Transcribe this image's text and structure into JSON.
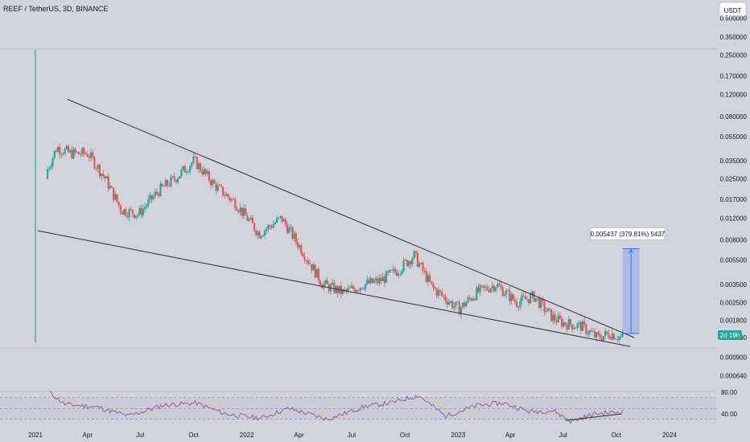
{
  "header": {
    "title": "REEF / TetherUS, 3D, BINANCE"
  },
  "unit_button": {
    "label": "USDT"
  },
  "countdown": {
    "label": "2d 19h",
    "price": "0.001300"
  },
  "measure": {
    "label": "0.005437 (379.81%) 5437"
  },
  "colors": {
    "background": "#d1d4dc",
    "up": "#26a69a",
    "down": "#ef5350",
    "trendline": "#2a2e39",
    "rsi_line": "#7e57c2",
    "rsi_ma": "#f2c94c",
    "measure_fill": "#2962ff",
    "countdown_bg": "#26a69a"
  },
  "chart_data": [
    {
      "type": "candlestick",
      "symbol": "REEF / TetherUS",
      "interval": "3D",
      "exchange": "BINANCE",
      "scale": "log",
      "grid": false,
      "y_ticks": [
        "0.500000",
        "0.350000",
        "0.250000",
        "0.170000",
        "0.120000",
        "0.080000",
        "0.055000",
        "0.035000",
        "0.025000",
        "0.017000",
        "0.012000",
        "0.008000",
        "0.005500",
        "0.003500",
        "0.002500",
        "0.001800",
        "0.001300",
        "0.000900",
        "0.000640"
      ],
      "x_ticks": [
        "2021",
        "Apr",
        "Jul",
        "Oct",
        "2022",
        "Apr",
        "Jul",
        "Oct",
        "2023",
        "Apr",
        "Jul",
        "Oct",
        "2024"
      ],
      "approx_path": [
        {
          "x": "2020-12-20",
          "y": 0.0011
        },
        {
          "x": "2021-01-05",
          "y": 0.009
        },
        {
          "x": "2021-01-25",
          "y": 0.03
        },
        {
          "x": "2021-02-10",
          "y": 0.045
        },
        {
          "x": "2021-03-05",
          "y": 0.04
        },
        {
          "x": "2021-04-05",
          "y": 0.04
        },
        {
          "x": "2021-05-05",
          "y": 0.025
        },
        {
          "x": "2021-06-01",
          "y": 0.014
        },
        {
          "x": "2021-07-01",
          "y": 0.013
        },
        {
          "x": "2021-08-05",
          "y": 0.02
        },
        {
          "x": "2021-09-01",
          "y": 0.025
        },
        {
          "x": "2021-10-05",
          "y": 0.035
        },
        {
          "x": "2021-11-10",
          "y": 0.022
        },
        {
          "x": "2021-12-15",
          "y": 0.016
        },
        {
          "x": "2022-01-25",
          "y": 0.009
        },
        {
          "x": "2022-03-05",
          "y": 0.012
        },
        {
          "x": "2022-04-15",
          "y": 0.006
        },
        {
          "x": "2022-05-15",
          "y": 0.0035
        },
        {
          "x": "2022-06-20",
          "y": 0.003
        },
        {
          "x": "2022-07-25",
          "y": 0.0035
        },
        {
          "x": "2022-08-20",
          "y": 0.0037
        },
        {
          "x": "2022-09-20",
          "y": 0.0045
        },
        {
          "x": "2022-10-20",
          "y": 0.006
        },
        {
          "x": "2022-11-20",
          "y": 0.0033
        },
        {
          "x": "2023-01-05",
          "y": 0.0022
        },
        {
          "x": "2023-02-05",
          "y": 0.003
        },
        {
          "x": "2023-03-10",
          "y": 0.0035
        },
        {
          "x": "2023-04-15",
          "y": 0.0025
        },
        {
          "x": "2023-05-15",
          "y": 0.0028
        },
        {
          "x": "2023-06-15",
          "y": 0.0019
        },
        {
          "x": "2023-07-05",
          "y": 0.0017
        },
        {
          "x": "2023-08-05",
          "y": 0.0016
        },
        {
          "x": "2023-09-01",
          "y": 0.0013
        },
        {
          "x": "2023-09-25",
          "y": 0.0014
        },
        {
          "x": "2023-10-12",
          "y": 0.0013
        }
      ],
      "trendlines": [
        {
          "name": "upper",
          "from": {
            "x": "2021-02-25",
            "y": 0.11
          },
          "to": {
            "x": "2023-11-01",
            "y": 0.0013
          }
        },
        {
          "name": "lower",
          "from": {
            "x": "2021-01-05",
            "y": 0.0095
          },
          "to": {
            "x": "2023-10-25",
            "y": 0.0011
          }
        }
      ],
      "measure": {
        "from_price": 0.0014,
        "to_price": 0.0068,
        "change": 0.005437,
        "percent": 379.81,
        "ticks": 5437
      }
    },
    {
      "type": "line",
      "name": "RSI",
      "y_ticks": [
        80,
        40
      ],
      "levels": [
        70,
        50,
        30
      ],
      "ylim": [
        20,
        90
      ],
      "approx_path": [
        {
          "x": "2021-01-25",
          "y": 80
        },
        {
          "x": "2021-02-20",
          "y": 58
        },
        {
          "x": "2021-04-20",
          "y": 52
        },
        {
          "x": "2021-06-10",
          "y": 36
        },
        {
          "x": "2021-08-10",
          "y": 56
        },
        {
          "x": "2021-10-05",
          "y": 60
        },
        {
          "x": "2021-11-25",
          "y": 40
        },
        {
          "x": "2022-01-25",
          "y": 32
        },
        {
          "x": "2022-03-15",
          "y": 50
        },
        {
          "x": "2022-05-20",
          "y": 30
        },
        {
          "x": "2022-07-25",
          "y": 54
        },
        {
          "x": "2022-09-05",
          "y": 60
        },
        {
          "x": "2022-10-25",
          "y": 74
        },
        {
          "x": "2022-12-10",
          "y": 36
        },
        {
          "x": "2023-02-05",
          "y": 56
        },
        {
          "x": "2023-03-20",
          "y": 60
        },
        {
          "x": "2023-05-05",
          "y": 44
        },
        {
          "x": "2023-06-15",
          "y": 46
        },
        {
          "x": "2023-07-15",
          "y": 26
        },
        {
          "x": "2023-08-25",
          "y": 40
        },
        {
          "x": "2023-10-12",
          "y": 44
        }
      ],
      "divergence_line": {
        "from": {
          "x": "2023-07-05",
          "y": 28
        },
        "to": {
          "x": "2023-10-10",
          "y": 40
        }
      }
    }
  ]
}
